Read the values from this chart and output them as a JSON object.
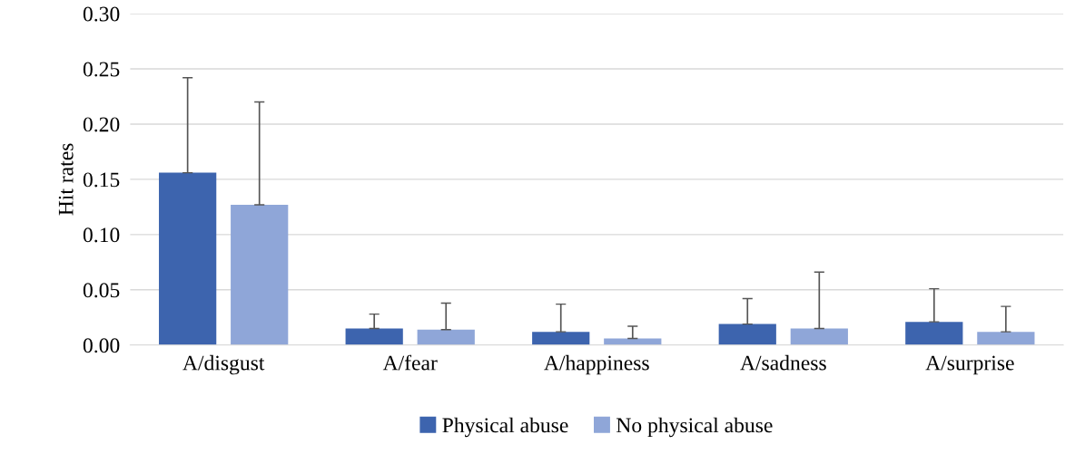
{
  "chart_data": {
    "type": "bar",
    "ylabel": "Hit rates",
    "categories": [
      "A/disgust",
      "A/fear",
      "A/happiness",
      "A/sadness",
      "A/surprise"
    ],
    "series": [
      {
        "name": "Physical abuse",
        "color": "#3d64ae",
        "values": [
          0.156,
          0.015,
          0.012,
          0.019,
          0.021
        ],
        "errors": [
          [
            0.156,
            0.242
          ],
          [
            0.015,
            0.028
          ],
          [
            0.012,
            0.037
          ],
          [
            0.019,
            0.042
          ],
          [
            0.021,
            0.051
          ]
        ]
      },
      {
        "name": "No physical abuse",
        "color": "#8fa6d8",
        "values": [
          0.127,
          0.014,
          0.006,
          0.015,
          0.012
        ],
        "errors": [
          [
            0.127,
            0.22
          ],
          [
            0.014,
            0.038
          ],
          [
            0.006,
            0.017
          ],
          [
            0.015,
            0.066
          ],
          [
            0.012,
            0.035
          ]
        ]
      }
    ],
    "ylim": [
      0,
      0.3
    ],
    "yticks": [
      {
        "value": 0,
        "label": "0.00"
      },
      {
        "value": 0.05,
        "label": "0.05"
      },
      {
        "value": 0.1,
        "label": "0.10"
      },
      {
        "value": 0.15,
        "label": "0.15"
      },
      {
        "value": 0.2,
        "label": "0.20"
      },
      {
        "value": 0.25,
        "label": "0.25"
      },
      {
        "value": 0.3,
        "label": "0.30"
      }
    ],
    "grid": "y",
    "legend": "bottom"
  }
}
